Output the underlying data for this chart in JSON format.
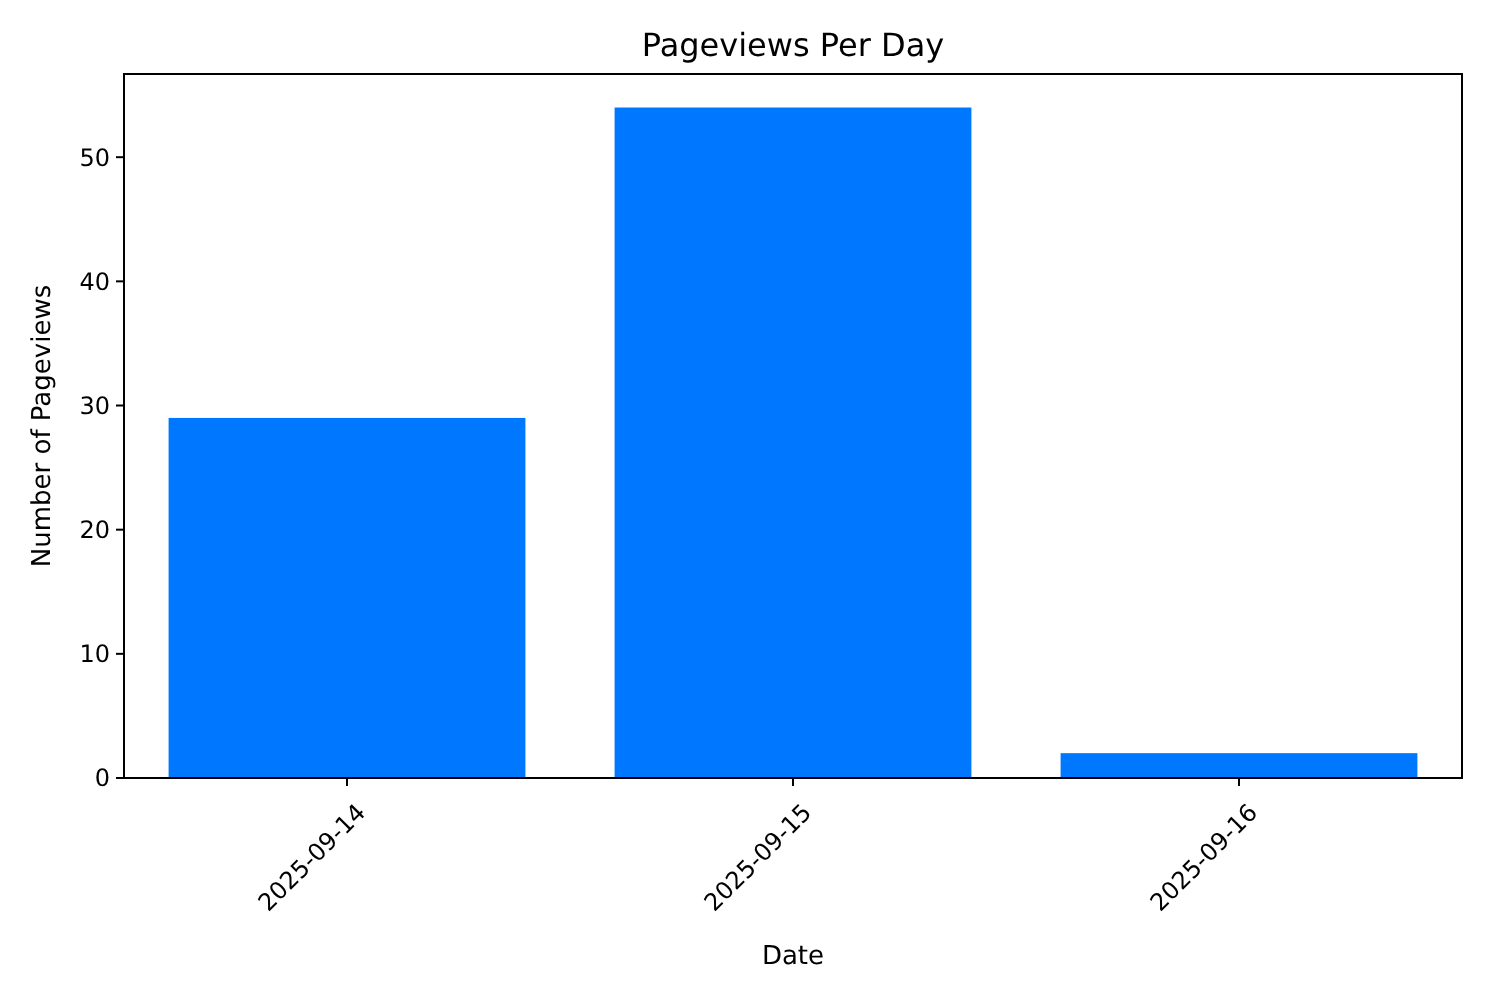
{
  "chart_data": {
    "type": "bar",
    "title": "Pageviews Per Day",
    "xlabel": "Date",
    "ylabel": "Number of Pageviews",
    "categories": [
      "2025-09-14",
      "2025-09-15",
      "2025-09-16"
    ],
    "values": [
      29,
      54,
      2
    ],
    "color": "#0077ff",
    "ylim": [
      0,
      56.7
    ],
    "yticks": [
      0,
      10,
      20,
      30,
      40,
      50
    ],
    "grid": false
  }
}
